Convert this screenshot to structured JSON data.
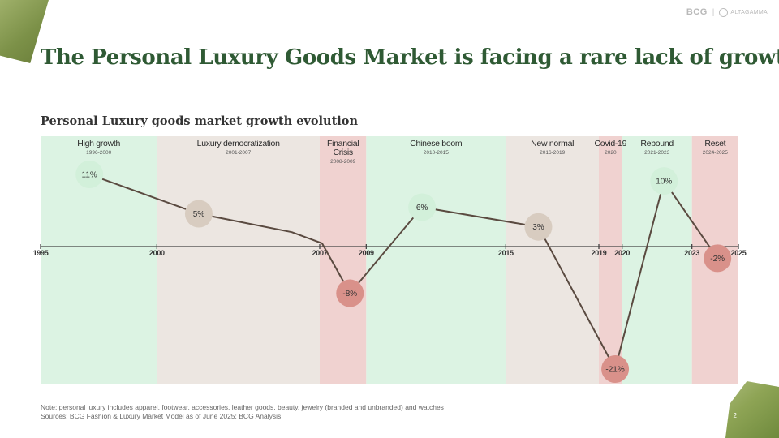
{
  "header": {
    "title": "The Personal Luxury Goods Market is facing a rare lack of growth",
    "brand_left": "BCG",
    "brand_sep": "|",
    "brand_right": "ALTAGAMMA"
  },
  "chart_data": {
    "type": "line",
    "title": "Personal Luxury goods market growth evolution",
    "x_ticks": [
      1995,
      2000,
      2007,
      2009,
      2015,
      2019,
      2020,
      2023,
      2025
    ],
    "xlim": [
      1995,
      2025
    ],
    "ylim": [
      -24,
      15
    ],
    "phases": [
      {
        "name": "High growth",
        "years": "1996-2000",
        "start": 1995,
        "end": 2000,
        "color": "#dcf3e3"
      },
      {
        "name": "Luxury democratization",
        "years": "2001-2007",
        "start": 2000,
        "end": 2007,
        "color": "#ece6e1"
      },
      {
        "name": "Financial Crisis",
        "years": "2008-2009",
        "start": 2007,
        "end": 2009,
        "color": "#f0d2d0"
      },
      {
        "name": "Chinese boom",
        "years": "2010-2015",
        "start": 2009,
        "end": 2015,
        "color": "#dcf3e3"
      },
      {
        "name": "New normal",
        "years": "2016-2019",
        "start": 2015,
        "end": 2019,
        "color": "#ece6e1"
      },
      {
        "name": "Covid-19",
        "years": "2020",
        "start": 2019,
        "end": 2020,
        "color": "#f0d2d0"
      },
      {
        "name": "Rebound",
        "years": "2021-2023",
        "start": 2020,
        "end": 2023,
        "color": "#dcf3e3"
      },
      {
        "name": "Reset",
        "years": "2024-2025",
        "start": 2023,
        "end": 2025,
        "color": "#f0d2d0"
      }
    ],
    "points": [
      {
        "x": 1997.1,
        "y": 11,
        "label": "11%",
        "color": "#d2f0da"
      },
      {
        "x": 2001.8,
        "y": 5,
        "label": "5%",
        "color": "#d8ccc0"
      },
      {
        "x": 2008.3,
        "y": -8,
        "label": "-8%",
        "color": "#d9918a"
      },
      {
        "x": 2011.4,
        "y": 6,
        "label": "6%",
        "color": "#d2f0da"
      },
      {
        "x": 2016.4,
        "y": 3,
        "label": "3%",
        "color": "#d8ccc0"
      },
      {
        "x": 2019.7,
        "y": -21,
        "label": "-21%",
        "color": "#d9918a"
      },
      {
        "x": 2021.8,
        "y": 10,
        "label": "10%",
        "color": "#d2f0da"
      },
      {
        "x": 2024.1,
        "y": -2,
        "label": "-2%",
        "color": "#d9918a"
      }
    ],
    "path": [
      [
        1997.1,
        11
      ],
      [
        2001.8,
        5
      ],
      [
        2005.8,
        2.2
      ],
      [
        2007.1,
        0.5
      ],
      [
        2008.3,
        -8
      ],
      [
        2011.4,
        6
      ],
      [
        2016.4,
        3
      ],
      [
        2019.7,
        -21
      ],
      [
        2021.8,
        10
      ],
      [
        2024.1,
        -2
      ]
    ],
    "line_color": "#5a4a40"
  },
  "footer": {
    "note": "Note: personal luxury includes apparel, footwear, accessories, leather goods, beauty, jewelry (branded and unbranded) and watches",
    "sources": "Sources: BCG Fashion & Luxury Market Model as of June 2025; BCG Analysis",
    "page": "2"
  }
}
